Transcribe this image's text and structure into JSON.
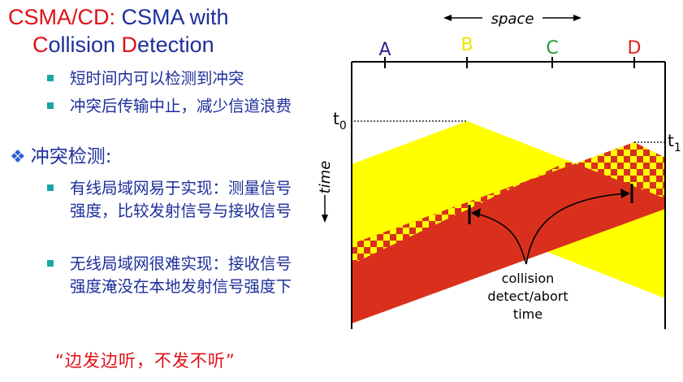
{
  "title": {
    "part1": "CSMA/CD:",
    "part2": " CSMA with",
    "c_letter": "C",
    "ollision": "ollision ",
    "d_letter": "D",
    "etection": "etection"
  },
  "bullets_top": [
    "短时间内可以检测到冲突",
    "冲突后传输中止，减少信道浪费"
  ],
  "section": {
    "marker": "❖",
    "heading": "冲突检测:"
  },
  "bullets_bottom": [
    "有线局域网易于实现：测量信号强度，比较发射信号与接收信号",
    "无线局域网很难实现：接收信号强度淹没在本地发射信号强度下"
  ],
  "quote": "“边发边听，不发不听”",
  "diagram": {
    "space_label": "space",
    "time_label": "time",
    "nodes": [
      {
        "name": "A",
        "color": "#3a1e8c"
      },
      {
        "name": "B",
        "color": "#f2e400"
      },
      {
        "name": "C",
        "color": "#1f9a3b"
      },
      {
        "name": "D",
        "color": "#d8261b"
      }
    ],
    "t0_label": "t",
    "t0_sub": "0",
    "t1_label": "t",
    "t1_sub": "1",
    "annotation": [
      "collision",
      "detect/abort",
      "time"
    ],
    "colors": {
      "yellow": "#ffff00",
      "red": "#d9301e"
    }
  }
}
